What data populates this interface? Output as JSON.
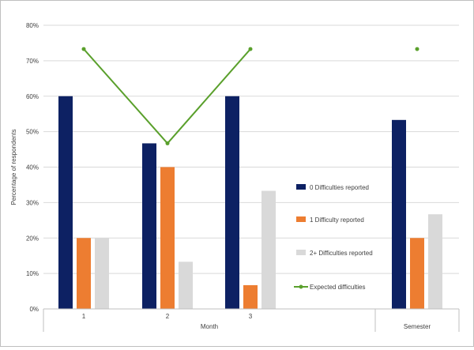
{
  "chart_data": {
    "type": "bar",
    "ylabel": "Percentage of respondents",
    "ylim": [
      0,
      80
    ],
    "yticks": [
      "0%",
      "10%",
      "20%",
      "30%",
      "40%",
      "50%",
      "60%",
      "70%",
      "80%"
    ],
    "categories": [
      "1",
      "2",
      "3",
      "Semester"
    ],
    "group_labels": [
      "Month",
      "Semester"
    ],
    "series": [
      {
        "name": "0 Difficulties reported",
        "type": "bar",
        "color": "#0d2163",
        "values": [
          60,
          46.7,
          60,
          53.3
        ]
      },
      {
        "name": "1 Difficulty reported",
        "type": "bar",
        "color": "#ed7d31",
        "values": [
          20,
          40,
          6.7,
          20
        ]
      },
      {
        "name": "2+ Difficulties reported",
        "type": "bar",
        "color": "#d9d9d9",
        "values": [
          20,
          13.3,
          33.3,
          26.7
        ]
      },
      {
        "name": "Expected difficulties",
        "type": "line",
        "color": "#5aa02c",
        "values": [
          73.3,
          46.7,
          73.3,
          73.3
        ]
      }
    ],
    "grid": true,
    "legend_position": "center-right"
  }
}
